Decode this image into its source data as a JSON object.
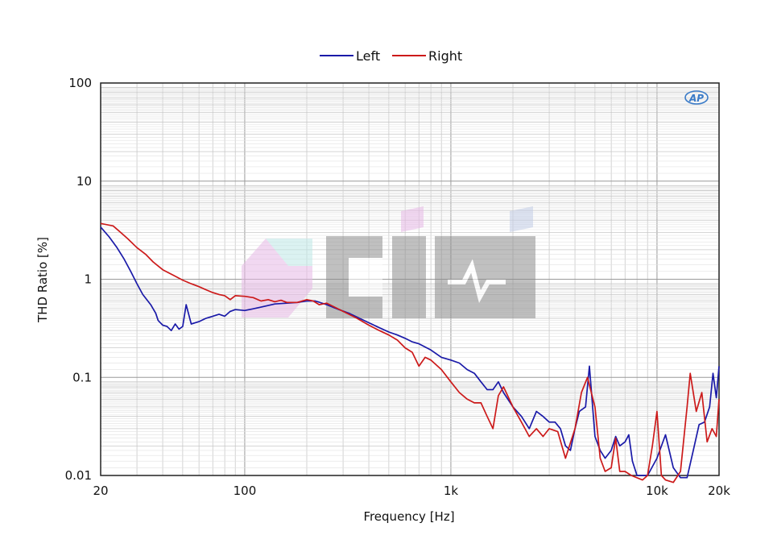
{
  "chart_data": {
    "type": "line",
    "title": "",
    "xlabel": "Frequency [Hz]",
    "ylabel": "THD Ratio [%]",
    "x_scale": "log",
    "y_scale": "log",
    "xlim": [
      20,
      20000
    ],
    "ylim": [
      0.01,
      100
    ],
    "grid": true,
    "legend_position": "top-center",
    "x_ticks": [
      {
        "value": 20,
        "label": "20"
      },
      {
        "value": 100,
        "label": "100"
      },
      {
        "value": 1000,
        "label": "1k"
      },
      {
        "value": 10000,
        "label": "10k"
      },
      {
        "value": 20000,
        "label": "20k"
      }
    ],
    "y_ticks": [
      {
        "value": 100,
        "label": "100"
      },
      {
        "value": 10,
        "label": "10"
      },
      {
        "value": 1,
        "label": "1"
      },
      {
        "value": 0.1,
        "label": "0.1"
      },
      {
        "value": 0.01,
        "label": "0.01"
      }
    ],
    "series": [
      {
        "name": "Left",
        "color": "#1a1aa8",
        "points": [
          [
            20,
            3.4
          ],
          [
            22,
            2.7
          ],
          [
            24,
            2.1
          ],
          [
            26,
            1.6
          ],
          [
            28,
            1.2
          ],
          [
            30,
            0.9
          ],
          [
            32,
            0.7
          ],
          [
            35,
            0.55
          ],
          [
            37,
            0.45
          ],
          [
            38,
            0.38
          ],
          [
            40,
            0.34
          ],
          [
            42,
            0.33
          ],
          [
            44,
            0.3
          ],
          [
            46,
            0.35
          ],
          [
            48,
            0.31
          ],
          [
            50,
            0.33
          ],
          [
            52,
            0.55
          ],
          [
            55,
            0.35
          ],
          [
            60,
            0.37
          ],
          [
            65,
            0.4
          ],
          [
            70,
            0.42
          ],
          [
            75,
            0.44
          ],
          [
            80,
            0.42
          ],
          [
            85,
            0.47
          ],
          [
            90,
            0.49
          ],
          [
            100,
            0.48
          ],
          [
            110,
            0.5
          ],
          [
            120,
            0.52
          ],
          [
            130,
            0.54
          ],
          [
            140,
            0.56
          ],
          [
            160,
            0.57
          ],
          [
            180,
            0.58
          ],
          [
            200,
            0.6
          ],
          [
            220,
            0.6
          ],
          [
            250,
            0.55
          ],
          [
            280,
            0.5
          ],
          [
            320,
            0.45
          ],
          [
            360,
            0.4
          ],
          [
            400,
            0.36
          ],
          [
            450,
            0.32
          ],
          [
            500,
            0.29
          ],
          [
            550,
            0.27
          ],
          [
            600,
            0.25
          ],
          [
            650,
            0.23
          ],
          [
            700,
            0.22
          ],
          [
            800,
            0.19
          ],
          [
            900,
            0.16
          ],
          [
            1000,
            0.15
          ],
          [
            1100,
            0.14
          ],
          [
            1200,
            0.12
          ],
          [
            1300,
            0.11
          ],
          [
            1400,
            0.09
          ],
          [
            1500,
            0.075
          ],
          [
            1600,
            0.075
          ],
          [
            1700,
            0.09
          ],
          [
            1800,
            0.07
          ],
          [
            2000,
            0.05
          ],
          [
            2200,
            0.04
          ],
          [
            2400,
            0.03
          ],
          [
            2600,
            0.045
          ],
          [
            2800,
            0.04
          ],
          [
            3000,
            0.035
          ],
          [
            3200,
            0.035
          ],
          [
            3400,
            0.03
          ],
          [
            3600,
            0.02
          ],
          [
            3800,
            0.018
          ],
          [
            4000,
            0.03
          ],
          [
            4200,
            0.045
          ],
          [
            4500,
            0.05
          ],
          [
            4700,
            0.13
          ],
          [
            5000,
            0.025
          ],
          [
            5300,
            0.018
          ],
          [
            5600,
            0.015
          ],
          [
            6000,
            0.018
          ],
          [
            6300,
            0.025
          ],
          [
            6600,
            0.02
          ],
          [
            7000,
            0.022
          ],
          [
            7300,
            0.026
          ],
          [
            7600,
            0.014
          ],
          [
            8000,
            0.01
          ],
          [
            9000,
            0.01
          ],
          [
            10000,
            0.015
          ],
          [
            11000,
            0.026
          ],
          [
            12000,
            0.012
          ],
          [
            13000,
            0.0095
          ],
          [
            14000,
            0.0095
          ],
          [
            15000,
            0.018
          ],
          [
            16000,
            0.033
          ],
          [
            17000,
            0.035
          ],
          [
            18000,
            0.05
          ],
          [
            18700,
            0.11
          ],
          [
            19400,
            0.062
          ],
          [
            20000,
            0.13
          ]
        ]
      },
      {
        "name": "Right",
        "color": "#cc1a1a",
        "points": [
          [
            20,
            3.7
          ],
          [
            23,
            3.5
          ],
          [
            25,
            3.0
          ],
          [
            27,
            2.6
          ],
          [
            30,
            2.1
          ],
          [
            33,
            1.8
          ],
          [
            36,
            1.5
          ],
          [
            40,
            1.25
          ],
          [
            45,
            1.1
          ],
          [
            50,
            0.98
          ],
          [
            55,
            0.9
          ],
          [
            60,
            0.84
          ],
          [
            65,
            0.78
          ],
          [
            70,
            0.73
          ],
          [
            75,
            0.7
          ],
          [
            80,
            0.68
          ],
          [
            85,
            0.62
          ],
          [
            90,
            0.68
          ],
          [
            100,
            0.67
          ],
          [
            110,
            0.65
          ],
          [
            120,
            0.6
          ],
          [
            130,
            0.62
          ],
          [
            140,
            0.59
          ],
          [
            150,
            0.61
          ],
          [
            160,
            0.58
          ],
          [
            180,
            0.58
          ],
          [
            200,
            0.62
          ],
          [
            215,
            0.6
          ],
          [
            230,
            0.55
          ],
          [
            250,
            0.57
          ],
          [
            300,
            0.47
          ],
          [
            350,
            0.4
          ],
          [
            400,
            0.34
          ],
          [
            450,
            0.3
          ],
          [
            500,
            0.27
          ],
          [
            550,
            0.24
          ],
          [
            600,
            0.2
          ],
          [
            650,
            0.18
          ],
          [
            700,
            0.13
          ],
          [
            750,
            0.16
          ],
          [
            800,
            0.15
          ],
          [
            900,
            0.12
          ],
          [
            1000,
            0.09
          ],
          [
            1100,
            0.07
          ],
          [
            1200,
            0.06
          ],
          [
            1300,
            0.055
          ],
          [
            1400,
            0.055
          ],
          [
            1500,
            0.04
          ],
          [
            1600,
            0.03
          ],
          [
            1700,
            0.065
          ],
          [
            1800,
            0.08
          ],
          [
            2000,
            0.05
          ],
          [
            2200,
            0.035
          ],
          [
            2400,
            0.025
          ],
          [
            2600,
            0.03
          ],
          [
            2800,
            0.025
          ],
          [
            3000,
            0.03
          ],
          [
            3300,
            0.028
          ],
          [
            3600,
            0.015
          ],
          [
            4000,
            0.03
          ],
          [
            4300,
            0.07
          ],
          [
            4600,
            0.1
          ],
          [
            5000,
            0.05
          ],
          [
            5300,
            0.015
          ],
          [
            5600,
            0.011
          ],
          [
            6000,
            0.012
          ],
          [
            6300,
            0.024
          ],
          [
            6600,
            0.011
          ],
          [
            7000,
            0.011
          ],
          [
            7500,
            0.01
          ],
          [
            8500,
            0.009
          ],
          [
            9000,
            0.01
          ],
          [
            9500,
            0.02
          ],
          [
            10000,
            0.045
          ],
          [
            10500,
            0.01
          ],
          [
            11000,
            0.009
          ],
          [
            12000,
            0.008
          ],
          [
            13000,
            0.011
          ],
          [
            14000,
            0.05
          ],
          [
            14500,
            0.11
          ],
          [
            15500,
            0.045
          ],
          [
            16500,
            0.07
          ],
          [
            17500,
            0.022
          ],
          [
            18500,
            0.03
          ],
          [
            19400,
            0.025
          ],
          [
            20000,
            0.06
          ]
        ]
      }
    ]
  }
}
